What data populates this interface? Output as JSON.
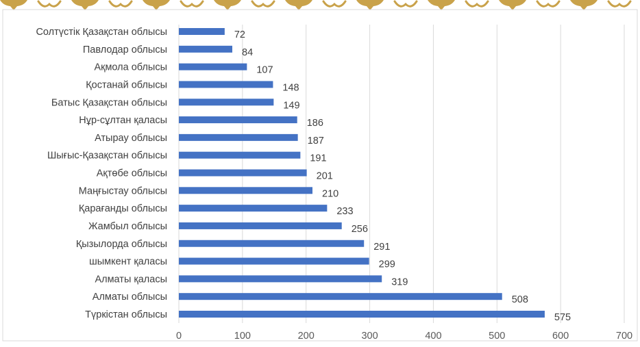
{
  "colors": {
    "bar": "#4472C4",
    "gridline": "#D9D9D9",
    "ornament": "#C9A24A",
    "text": "#404040"
  },
  "decoration": {
    "icon": "ornamental-border-pattern"
  },
  "chart_data": {
    "type": "bar",
    "orientation": "horizontal",
    "title": "",
    "xlabel": "",
    "ylabel": "",
    "xlim": [
      0,
      700
    ],
    "grid": true,
    "legend": "none",
    "categories": [
      "Солтүстік Қазақстан облысы",
      "Павлодар облысы",
      "Ақмола облысы",
      "Қостанай облысы",
      "Батыс Қазақстан облысы",
      "Нұр-сұлтан қаласы",
      "Атырау облысы",
      "Шығыс-Қазақстан облысы",
      "Ақтөбе облысы",
      "Маңғыстау облысы",
      "Қарағанды облысы",
      "Жамбыл облысы",
      "Қызылорда облысы",
      "шымкент қаласы",
      "Алматы қаласы",
      "Алматы облысы",
      "Түркістан облысы"
    ],
    "values": [
      72,
      84,
      107,
      148,
      149,
      186,
      187,
      191,
      201,
      210,
      233,
      256,
      291,
      299,
      319,
      508,
      575
    ],
    "x_ticks": [
      "0",
      "100",
      "200",
      "300",
      "400",
      "500",
      "600",
      "700"
    ]
  }
}
